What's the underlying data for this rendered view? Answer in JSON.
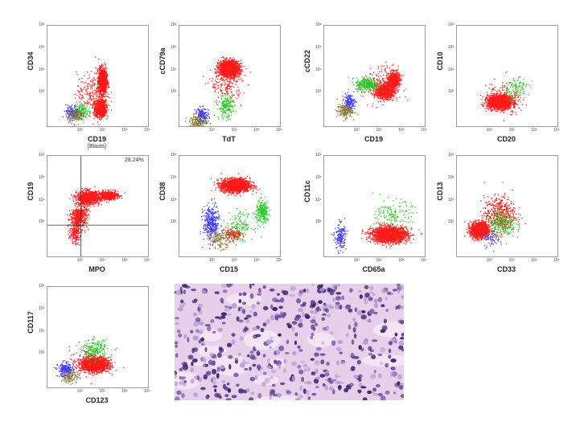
{
  "chart_data": [
    {
      "type": "scatter",
      "xlabel": "CD19",
      "ylabel": "CD34",
      "sublabel": "[Blasts]",
      "xticks": [
        "10³",
        "10⁴",
        "10⁵",
        "10⁶"
      ],
      "yticks": [
        "10³",
        "10⁴",
        "10⁵",
        "10⁶"
      ],
      "series": [
        {
          "color": "#ff1a1a",
          "clusters": [
            [
              3.85,
              2.3,
              0.25,
              0.35,
              1000
            ],
            [
              3.95,
              3.55,
              0.18,
              0.55,
              1200
            ],
            [
              3.5,
              3.0,
              0.7,
              0.9,
              250
            ]
          ]
        },
        {
          "color": "#28c828",
          "clusters": [
            [
              3.0,
              2.2,
              0.3,
              0.35,
              150
            ]
          ]
        },
        {
          "color": "#3a3aff",
          "clusters": [
            [
              2.6,
              2.1,
              0.3,
              0.35,
              160
            ]
          ]
        },
        {
          "color": "#8a7a30",
          "clusters": [
            [
              2.8,
              2.0,
              0.35,
              0.3,
              120
            ]
          ]
        }
      ]
    },
    {
      "type": "scatter",
      "xlabel": "TdT",
      "ylabel": "cCD79a",
      "xticks": [
        "10³",
        "10⁴",
        "10⁵",
        "10⁶"
      ],
      "yticks": [
        "10³",
        "10⁴",
        "10⁵",
        "10⁶"
      ],
      "series": [
        {
          "color": "#ff1a1a",
          "clusters": [
            [
              3.7,
              4.1,
              0.45,
              0.35,
              1600
            ],
            [
              3.6,
              3.4,
              0.7,
              0.8,
              200
            ]
          ]
        },
        {
          "color": "#28c828",
          "clusters": [
            [
              3.6,
              2.4,
              0.35,
              0.55,
              200
            ]
          ]
        },
        {
          "color": "#3a3aff",
          "clusters": [
            [
              2.5,
              2.0,
              0.3,
              0.35,
              160
            ]
          ]
        },
        {
          "color": "#8a7a30",
          "clusters": [
            [
              2.3,
              1.7,
              0.35,
              0.3,
              160
            ]
          ]
        }
      ]
    },
    {
      "type": "scatter",
      "xlabel": "CD19",
      "ylabel": "cCD22",
      "xticks": [
        "10³",
        "10⁴",
        "10⁵",
        "10⁶"
      ],
      "yticks": [
        "10³",
        "10⁴",
        "10⁵",
        "10⁶"
      ],
      "series": [
        {
          "color": "#ff1a1a",
          "clusters": [
            [
              4.6,
              3.6,
              0.25,
              0.35,
              600
            ],
            [
              4.2,
              3.1,
              0.45,
              0.35,
              800
            ],
            [
              4.0,
              3.3,
              0.8,
              0.9,
              200
            ]
          ]
        },
        {
          "color": "#28c828",
          "clusters": [
            [
              3.4,
              3.4,
              0.5,
              0.3,
              300
            ]
          ]
        },
        {
          "color": "#3a3aff",
          "clusters": [
            [
              2.6,
              2.6,
              0.25,
              0.35,
              160
            ]
          ]
        },
        {
          "color": "#8a7a30",
          "clusters": [
            [
              2.4,
              2.2,
              0.35,
              0.3,
              180
            ]
          ]
        }
      ]
    },
    {
      "type": "scatter",
      "xlabel": "CD20",
      "ylabel": "CD10",
      "xticks": [
        "10³",
        "10⁴",
        "10⁵",
        "10⁶"
      ],
      "yticks": [
        "10³",
        "10⁴",
        "10⁵",
        "10⁶"
      ],
      "series": [
        {
          "color": "#ff1a1a",
          "clusters": [
            [
              3.4,
              2.6,
              0.55,
              0.3,
              1600
            ],
            [
              3.5,
              2.8,
              0.8,
              0.7,
              200
            ]
          ]
        },
        {
          "color": "#28c828",
          "clusters": [
            [
              4.1,
              3.2,
              0.6,
              0.5,
              120
            ]
          ]
        }
      ]
    },
    {
      "type": "scatter",
      "xlabel": "MPO",
      "ylabel": "CD19",
      "annotation": "28.24%",
      "xticks": [
        "10³",
        "10⁴",
        "10⁵",
        "10⁶"
      ],
      "yticks": [
        "10³",
        "10⁴",
        "10⁵",
        "10⁶"
      ],
      "quadrant": {
        "x": 3.0,
        "y": 2.9
      },
      "series": [
        {
          "color": "#ff1a1a",
          "clusters": [
            [
              3.3,
              4.15,
              0.5,
              0.3,
              900
            ],
            [
              4.2,
              4.25,
              0.45,
              0.2,
              500
            ],
            [
              2.9,
              3.3,
              0.35,
              0.5,
              500
            ],
            [
              2.7,
              2.6,
              0.25,
              0.5,
              200
            ]
          ]
        }
      ]
    },
    {
      "type": "scatter",
      "xlabel": "CD15",
      "ylabel": "CD38",
      "xticks": [
        "10³",
        "10⁴",
        "10⁵",
        "10⁶"
      ],
      "yticks": [
        "10³",
        "10⁴",
        "10⁵",
        "10⁶"
      ],
      "series": [
        {
          "color": "#ff1a1a",
          "clusters": [
            [
              4.0,
              4.7,
              0.65,
              0.3,
              1600
            ],
            [
              3.9,
              2.5,
              0.35,
              0.3,
              150
            ]
          ]
        },
        {
          "color": "#28c828",
          "clusters": [
            [
              5.2,
              3.5,
              0.3,
              0.5,
              260
            ],
            [
              4.2,
              2.9,
              0.6,
              0.6,
              150
            ]
          ]
        },
        {
          "color": "#3a3aff",
          "clusters": [
            [
              2.9,
              3.0,
              0.35,
              0.8,
              350
            ]
          ]
        },
        {
          "color": "#8a7a30",
          "clusters": [
            [
              3.3,
              2.3,
              0.5,
              0.4,
              150
            ]
          ]
        }
      ]
    },
    {
      "type": "scatter",
      "xlabel": "CD65a",
      "ylabel": "CD11c",
      "xticks": [
        "10³",
        "10⁴",
        "10⁵",
        "10⁶"
      ],
      "yticks": [
        "10³",
        "10⁴",
        "10⁵",
        "10⁶"
      ],
      "series": [
        {
          "color": "#ff1a1a",
          "clusters": [
            [
              4.4,
              2.5,
              0.8,
              0.35,
              1900
            ]
          ]
        },
        {
          "color": "#28c828",
          "clusters": [
            [
              4.6,
              3.4,
              0.8,
              0.6,
              150
            ]
          ]
        },
        {
          "color": "#3a3aff",
          "clusters": [
            [
              2.2,
              2.4,
              0.25,
              0.6,
              180
            ]
          ]
        }
      ]
    },
    {
      "type": "scatter",
      "xlabel": "CD33",
      "ylabel": "CD13",
      "xticks": [
        "10³",
        "10⁴",
        "10⁵",
        "10⁶"
      ],
      "yticks": [
        "10³",
        "10⁴",
        "10⁵",
        "10⁶"
      ],
      "series": [
        {
          "color": "#ff1a1a",
          "clusters": [
            [
              2.5,
              2.7,
              0.4,
              0.35,
              1300
            ],
            [
              3.4,
              3.4,
              0.7,
              0.8,
              500
            ]
          ]
        },
        {
          "color": "#28c828",
          "clusters": [
            [
              3.5,
              3.0,
              0.6,
              0.6,
              220
            ]
          ]
        },
        {
          "color": "#3a3aff",
          "clusters": [
            [
              3.0,
              2.3,
              0.4,
              0.35,
              60
            ]
          ]
        }
      ]
    },
    {
      "type": "scatter",
      "xlabel": "CD123",
      "ylabel": "CD117",
      "xticks": [
        "10³",
        "10⁴",
        "10⁵",
        "10⁶"
      ],
      "yticks": [
        "10³",
        "10⁴",
        "10⁵",
        "10⁶"
      ],
      "series": [
        {
          "color": "#ff1a1a",
          "clusters": [
            [
              3.6,
              2.55,
              0.6,
              0.3,
              1600
            ],
            [
              3.4,
              2.7,
              0.9,
              0.6,
              200
            ]
          ]
        },
        {
          "color": "#28c828",
          "clusters": [
            [
              3.6,
              3.2,
              0.55,
              0.45,
              200
            ]
          ]
        },
        {
          "color": "#3a3aff",
          "clusters": [
            [
              2.3,
              2.3,
              0.35,
              0.3,
              250
            ]
          ]
        },
        {
          "color": "#8a7a30",
          "clusters": [
            [
              2.5,
              2.0,
              0.4,
              0.3,
              120
            ]
          ]
        }
      ]
    }
  ],
  "micrograph": {
    "background": "#e8d0ea",
    "stroma": "#f4e4f4",
    "cell": "#6a4aa0",
    "cell_dark": "#3a2470",
    "cell_light": "#b4a0d4"
  }
}
